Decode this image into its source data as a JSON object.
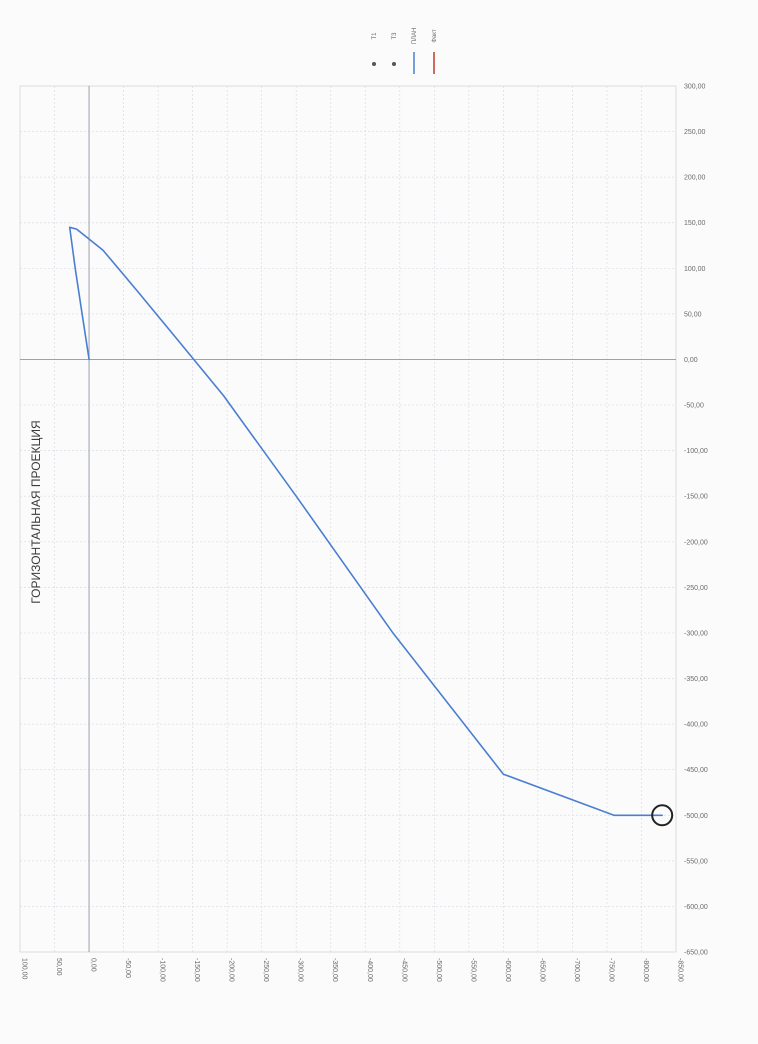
{
  "chart_data": {
    "type": "line",
    "title": "ГОРИЗОНТАЛЬНАЯ ПРОЕКЦИЯ",
    "y_axis": {
      "range": [
        -650,
        300
      ],
      "step": 50,
      "tick_labels": [
        "300,00",
        "250,00",
        "200,00",
        "150,00",
        "100,00",
        "50,00",
        "0,00",
        "-50,00",
        "-100,00",
        "-150,00",
        "-200,00",
        "-250,00",
        "-300,00",
        "-350,00",
        "-400,00",
        "-450,00",
        "-500,00",
        "-550,00",
        "-600,00",
        "-650,00"
      ]
    },
    "x_axis": {
      "range": [
        100,
        -850
      ],
      "step": 50,
      "reversed": true,
      "tick_labels": [
        "100,00",
        "50,00",
        "0,00",
        "-50,00",
        "-100,00",
        "-150,00",
        "-200,00",
        "-250,00",
        "-300,00",
        "-350,00",
        "-400,00",
        "-450,00",
        "-500,00",
        "-550,00",
        "-600,00",
        "-650,00",
        "-700,00",
        "-750,00",
        "-800,00",
        "-850,00"
      ]
    },
    "grid": true,
    "legend": {
      "placement": "top",
      "entries": [
        {
          "name": "T1",
          "marker": "dot",
          "color": "#555555"
        },
        {
          "name": "T3",
          "marker": "dot",
          "color": "#555555"
        },
        {
          "name": "ПЛАН",
          "marker": "line",
          "color": "#4a7fd0"
        },
        {
          "name": "Факт",
          "marker": "line",
          "color": "#c0392b"
        }
      ]
    },
    "series": [
      {
        "name": "ПЛАН",
        "color": "#4a7fd0",
        "x": [
          0,
          10,
          20,
          28,
          18,
          -20,
          -70,
          -130,
          -195,
          -300,
          -440,
          -600,
          -760,
          -830
        ],
        "y": [
          0,
          50,
          100,
          145,
          143,
          120,
          75,
          20,
          -40,
          -150,
          -300,
          -455,
          -500,
          -500
        ]
      }
    ],
    "annotations": [
      {
        "type": "circle",
        "x": -830,
        "y": -500
      }
    ]
  }
}
